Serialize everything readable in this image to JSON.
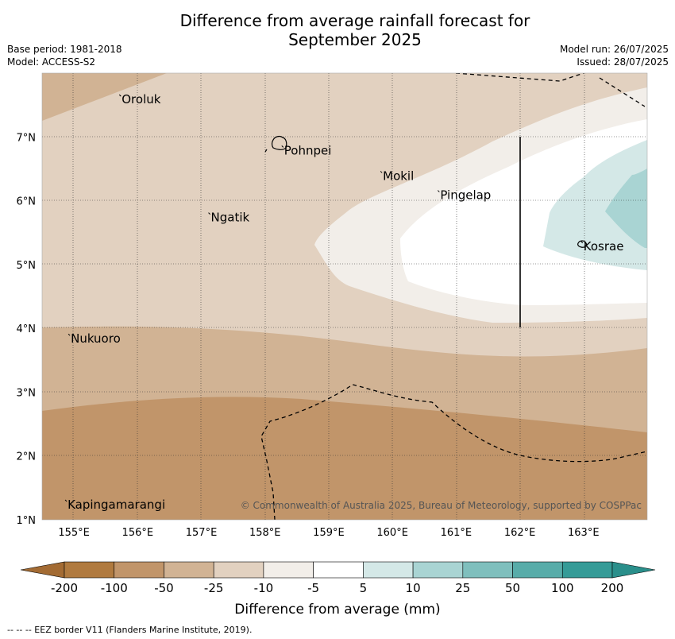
{
  "title_line1": "Difference from average rainfall forecast for",
  "title_line2": "September 2025",
  "meta_left": {
    "base_period": "Base period: 1981-2018",
    "model": "Model: ACCESS-S2"
  },
  "meta_right": {
    "model_run": "Model run: 26/07/2025",
    "issued": "Issued: 28/07/2025"
  },
  "map": {
    "lon_range": [
      154.5,
      164.0
    ],
    "lat_range": [
      1.0,
      8.0
    ],
    "lon_ticks": [
      "155°E",
      "156°E",
      "157°E",
      "158°E",
      "159°E",
      "160°E",
      "161°E",
      "162°E",
      "163°E"
    ],
    "lat_ticks": [
      "1°N",
      "2°N",
      "3°N",
      "4°N",
      "5°N",
      "6°N",
      "7°N"
    ],
    "gridlines": true,
    "places": [
      {
        "name": "Oroluk",
        "lon": 155.75,
        "lat": 7.6
      },
      {
        "name": "Pohnpei",
        "lon": 158.3,
        "lat": 6.8
      },
      {
        "name": "Mokil",
        "lon": 159.85,
        "lat": 6.4
      },
      {
        "name": "Pingelap",
        "lon": 160.75,
        "lat": 6.1
      },
      {
        "name": "Ngatik",
        "lon": 157.15,
        "lat": 5.75
      },
      {
        "name": "Kosrae",
        "lon": 163.0,
        "lat": 5.3
      },
      {
        "name": "Nukuoro",
        "lon": 154.95,
        "lat": 3.85
      },
      {
        "name": "Kapingamarangi",
        "lon": 154.9,
        "lat": 1.25
      }
    ],
    "copyright": "© Commonwealth of Australia 2025, Bureau of Meteorology, supported by COSPPac"
  },
  "colorbar": {
    "title": "Difference from average (mm)",
    "ticks": [
      "-200",
      "-100",
      "-50",
      "-25",
      "-10",
      "-5",
      "5",
      "10",
      "25",
      "50",
      "100",
      "200"
    ],
    "colors": [
      "#b07a3f",
      "#c1956a",
      "#d1b394",
      "#e2d1c0",
      "#f2eee9",
      "#ffffff",
      "#d4e8e7",
      "#a9d4d3",
      "#7fbfbd",
      "#58aca9",
      "#359b97"
    ],
    "under_color": "#a36b33",
    "over_color": "#2a8f8b"
  },
  "eez_note": "--  --  -- EEZ border V11 (Flanders Marine Institute, 2019)."
}
